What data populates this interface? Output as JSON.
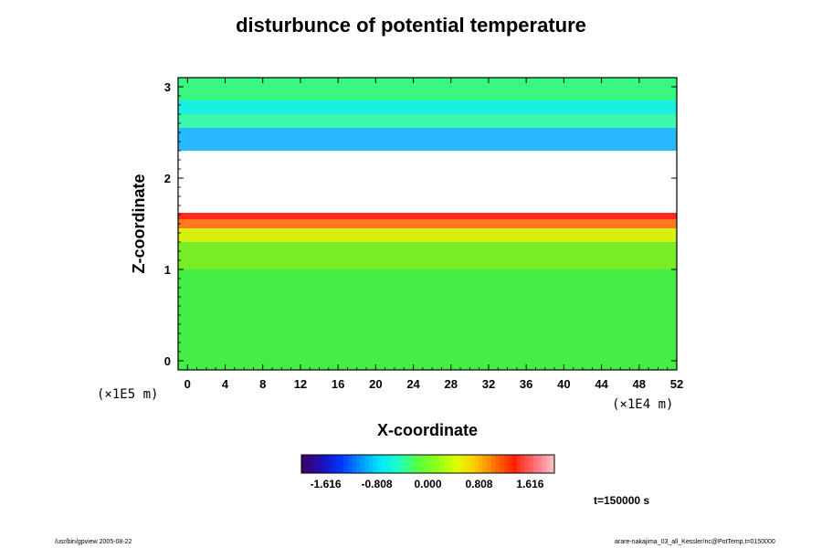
{
  "chart_data": {
    "type": "heatmap",
    "title": "disturbunce of potential temperature",
    "xlabel": "X-coordinate",
    "ylabel": "Z-coordinate",
    "x_ticks": [
      "0",
      "4",
      "8",
      "12",
      "16",
      "20",
      "24",
      "28",
      "32",
      "36",
      "40",
      "44",
      "48",
      "52"
    ],
    "y_ticks": [
      "0",
      "1",
      "2",
      "3"
    ],
    "xlim": [
      -1,
      52
    ],
    "ylim": [
      -0.1,
      3.1
    ],
    "x_unit": "(×1E4 m)",
    "y_unit": "(×1E5 m)",
    "colorbar": {
      "ticks": [
        "-1.616",
        "-0.808",
        "0.000",
        "0.808",
        "1.616"
      ],
      "range": [
        -2.0,
        2.0
      ],
      "colors": [
        "#3a006e",
        "#1c10b8",
        "#0038ff",
        "#0095ff",
        "#00e8ff",
        "#20ffc0",
        "#5aff3c",
        "#90ff18",
        "#e0ff00",
        "#ffc800",
        "#ff7000",
        "#ff2000",
        "#ff6a70",
        "#ffb8c0"
      ]
    },
    "bands": [
      {
        "z": [
          -0.1,
          1.0
        ],
        "value": 0.0,
        "color": "#44ee44"
      },
      {
        "z": [
          1.0,
          1.3
        ],
        "value": 0.25,
        "color": "#78ee28"
      },
      {
        "z": [
          1.3,
          1.45
        ],
        "value": 0.75,
        "color": "#d8ef10"
      },
      {
        "z": [
          1.45,
          1.55
        ],
        "value": 1.2,
        "color": "#ff7a1c"
      },
      {
        "z": [
          1.55,
          1.62
        ],
        "value": 1.8,
        "color": "#ff2a1c"
      },
      {
        "z": [
          1.62,
          2.3
        ],
        "value": null,
        "color": "#ffffff"
      },
      {
        "z": [
          2.3,
          2.55
        ],
        "value": -0.9,
        "color": "#28b8ff"
      },
      {
        "z": [
          2.55,
          2.7
        ],
        "value": -0.3,
        "color": "#3cf7a8"
      },
      {
        "z": [
          2.7,
          2.85
        ],
        "value": -0.5,
        "color": "#18f0e0"
      },
      {
        "z": [
          2.85,
          3.1
        ],
        "value": -0.1,
        "color": "#38f880"
      }
    ],
    "time_label": "t=150000 s"
  },
  "footer": {
    "left": "/usr/bin/gpview 2005-08-22",
    "right": "arare-nakajima_03_all_Kessler/nc@PotTemp,t=0150000"
  }
}
